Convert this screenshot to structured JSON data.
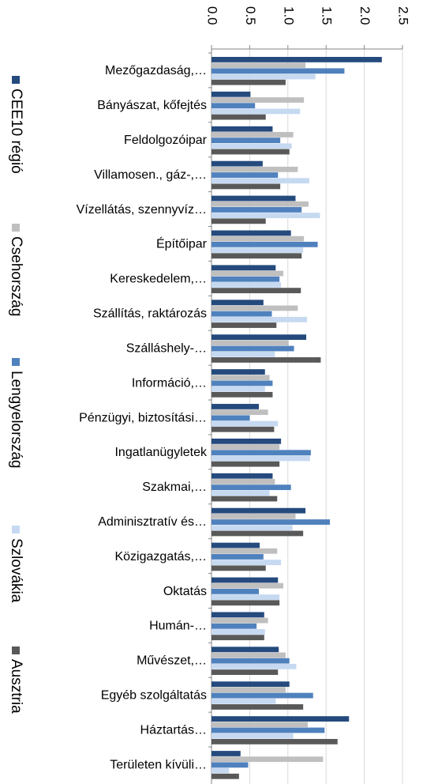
{
  "chart_data": {
    "type": "bar",
    "orientation": "horizontal",
    "categories": [
      "Mezőgazdaság,…",
      "Bányászat, kőfejtés",
      "Feldolgozóipar",
      "Villamosen., gáz-,…",
      "Vízellátás, szennyvíz…",
      "Építőipar",
      "Kereskedelem,…",
      "Szállítás, raktározás",
      "Szálláshely-…",
      "Információ,…",
      "Pénzügyi, biztosítási…",
      "Ingatlanügyletek",
      "Szakmai,…",
      "Adminisztratív és…",
      "Közigazgatás,…",
      "Oktatás",
      "Humán-…",
      "Művészet,…",
      "Egyéb szolgáltatás",
      "Háztartás…",
      "Területen kívüli…"
    ],
    "series": [
      {
        "name": "CEE10 régió",
        "color": "#254a7d",
        "values": [
          2.23,
          0.51,
          0.8,
          0.67,
          1.1,
          1.04,
          0.84,
          0.68,
          1.24,
          0.7,
          0.62,
          0.91,
          0.8,
          1.23,
          0.63,
          0.87,
          0.69,
          0.88,
          1.02,
          1.8,
          0.38
        ]
      },
      {
        "name": "Csehország",
        "color": "#bfbfbf",
        "values": [
          1.23,
          1.21,
          1.07,
          1.13,
          1.27,
          1.21,
          0.94,
          1.13,
          1.01,
          0.76,
          0.74,
          0.89,
          0.83,
          1.1,
          0.86,
          0.94,
          0.74,
          0.97,
          0.97,
          1.26,
          1.46
        ]
      },
      {
        "name": "Lengyelország",
        "color": "#4f81bd",
        "values": [
          1.74,
          0.57,
          0.9,
          0.87,
          1.18,
          1.39,
          0.89,
          0.79,
          1.08,
          0.8,
          0.5,
          1.3,
          1.04,
          1.55,
          0.68,
          0.62,
          0.59,
          1.02,
          1.33,
          1.48,
          0.48
        ]
      },
      {
        "name": "Szlovákia",
        "color": "#c6d9f1",
        "values": [
          1.36,
          1.16,
          1.05,
          1.28,
          1.42,
          1.2,
          0.91,
          1.25,
          0.83,
          0.7,
          0.87,
          1.29,
          0.76,
          1.06,
          0.91,
          0.89,
          0.7,
          1.11,
          0.84,
          1.07,
          0.23
        ]
      },
      {
        "name": "Ausztria",
        "color": "#595959",
        "values": [
          0.97,
          0.71,
          1.02,
          0.9,
          0.71,
          1.18,
          1.17,
          0.85,
          1.43,
          0.8,
          0.82,
          0.89,
          0.86,
          1.2,
          0.71,
          0.89,
          0.69,
          0.87,
          1.2,
          1.65,
          0.36
        ]
      }
    ],
    "xlim": [
      0,
      2.5
    ],
    "xticks": [
      {
        "value": 0,
        "label": "0.0"
      },
      0.5,
      {
        "value": 1,
        "label": "1.0"
      },
      1.5,
      {
        "value": 2,
        "label": "2.0"
      },
      2.5
    ],
    "grid": true,
    "legend": "left"
  }
}
